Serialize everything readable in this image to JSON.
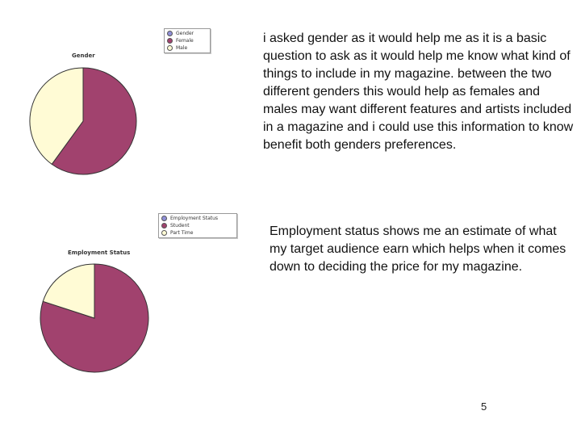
{
  "chart_data": [
    {
      "type": "pie",
      "title": "Gender",
      "legend": [
        "Gender",
        "Female",
        "Male"
      ],
      "categories": [
        "Female",
        "Male"
      ],
      "values": [
        60,
        40
      ],
      "colors": {
        "Gender": "#8f8fd8",
        "Female": "#a1426e",
        "Male": "#fffbd5"
      },
      "legend_position": "top-right"
    },
    {
      "type": "pie",
      "title": "Employment Status",
      "legend": [
        "Employment Status",
        "Student",
        "Part Time"
      ],
      "categories": [
        "Student",
        "Part Time"
      ],
      "values": [
        80,
        20
      ],
      "colors": {
        "Employment Status": "#8f8fd8",
        "Student": "#a1426e",
        "Part Time": "#fffbd5"
      },
      "legend_position": "top-right"
    }
  ],
  "text": {
    "gender_paragraph": "i asked gender as it would help me as it is a basic question to ask as it would help me know what kind of things to include in my magazine. between the two different genders this would help as females and males may want different features and artists included in a magazine and i could use this information to know benefit both genders preferences.",
    "employment_paragraph": "Employment status shows me an estimate of what my target audience earn which helps when it comes down to deciding the price for my magazine.",
    "page_number": "5"
  }
}
